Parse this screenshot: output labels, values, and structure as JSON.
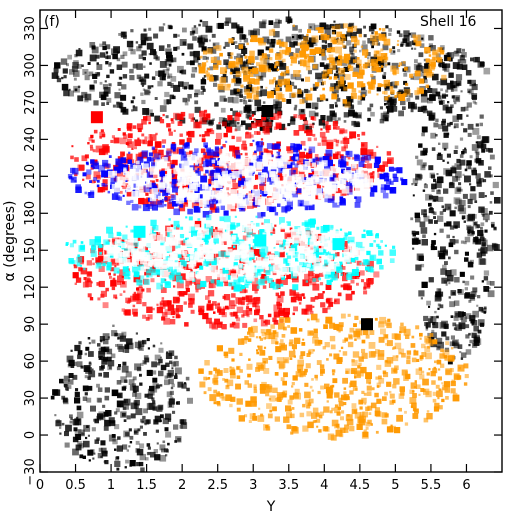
{
  "chart_data": {
    "type": "scatter",
    "panel_label": "(f)",
    "annotation": "Shell 16",
    "xlabel": "Y",
    "ylabel": "α (degrees)",
    "xlim": [
      0,
      6.5
    ],
    "ylim": [
      -30,
      345
    ],
    "x_ticks": [
      "0",
      "0.5",
      "1",
      "1.5",
      "2",
      "2.5",
      "3",
      "3.5",
      "4",
      "4.5",
      "5",
      "5.5",
      "6"
    ],
    "x_tick_values": [
      0,
      0.5,
      1,
      1.5,
      2,
      2.5,
      3,
      3.5,
      4,
      4.5,
      5,
      5.5,
      6
    ],
    "y_ticks": [
      "−30",
      "0",
      "30",
      "60",
      "90",
      "120",
      "150",
      "180",
      "210",
      "240",
      "270",
      "300",
      "330"
    ],
    "y_tick_values": [
      -30,
      0,
      30,
      60,
      90,
      120,
      150,
      180,
      210,
      240,
      270,
      300,
      330
    ],
    "grid": false,
    "colors": {
      "black": "#000000",
      "red": "#ff0000",
      "blue": "#0000ff",
      "cyan": "#00ffff",
      "orange": "#ff9900",
      "white": "#ffffff"
    },
    "regions": [
      {
        "name": "black-upper",
        "color": "black",
        "x": [
          0.15,
          6.3
        ],
        "y": [
          250,
          340
        ]
      },
      {
        "name": "black-lower",
        "color": "black",
        "x": [
          0.15,
          2.1
        ],
        "y": [
          -30,
          90
        ]
      },
      {
        "name": "black-right",
        "color": "black",
        "x": [
          5.2,
          6.4
        ],
        "y": [
          60,
          290
        ]
      },
      {
        "name": "red-upper",
        "color": "red",
        "x": [
          0.35,
          4.9
        ],
        "y": [
          185,
          265
        ]
      },
      {
        "name": "red-lower",
        "color": "red",
        "x": [
          0.4,
          4.7
        ],
        "y": [
          90,
          175
        ]
      },
      {
        "name": "blue",
        "color": "blue",
        "x": [
          0.35,
          5.1
        ],
        "y": [
          180,
          240
        ]
      },
      {
        "name": "cyan",
        "color": "cyan",
        "x": [
          0.3,
          5.0
        ],
        "y": [
          120,
          180
        ]
      },
      {
        "name": "orange-upper",
        "color": "orange",
        "x": [
          2.2,
          5.8
        ],
        "y": [
          270,
          335
        ]
      },
      {
        "name": "orange-lower",
        "color": "orange",
        "x": [
          2.2,
          6.0
        ],
        "y": [
          0,
          100
        ]
      }
    ],
    "big_points": [
      {
        "x": 1.4,
        "y": 165,
        "color": "cyan"
      },
      {
        "x": 3.1,
        "y": 158,
        "color": "cyan"
      },
      {
        "x": 4.2,
        "y": 155,
        "color": "cyan"
      },
      {
        "x": 3.2,
        "y": 263,
        "color": "black"
      },
      {
        "x": 0.8,
        "y": 258,
        "color": "red"
      },
      {
        "x": 4.6,
        "y": 90,
        "color": "black"
      }
    ]
  }
}
